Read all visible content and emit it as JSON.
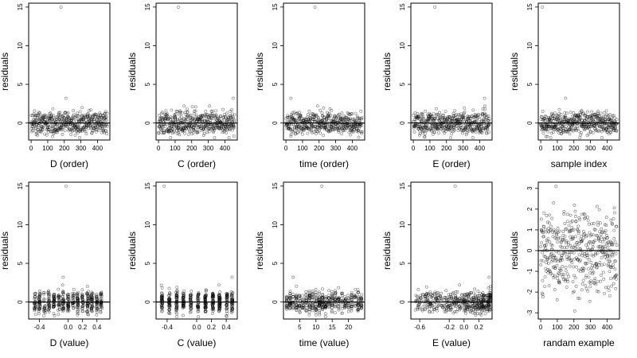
{
  "chart_data": [
    {
      "type": "scatter",
      "xlabel": "D (order)",
      "ylabel": "residuals",
      "xlim": [
        -15,
        475
      ],
      "ylim": [
        -2.2,
        15.5
      ],
      "xticks": [
        0,
        100,
        200,
        300,
        400
      ],
      "yticks": [
        0,
        5,
        10,
        15
      ],
      "hline": 0,
      "n": 460,
      "seed": 11,
      "noise": "bimodal",
      "spread": 1.0,
      "outlier": [
        180,
        15
      ],
      "extra": [
        [
          210,
          3.2
        ],
        [
          350,
          1.6
        ]
      ]
    },
    {
      "type": "scatter",
      "xlabel": "C (order)",
      "ylabel": "residuals",
      "xlim": [
        -15,
        475
      ],
      "ylim": [
        -2.2,
        15.5
      ],
      "xticks": [
        0,
        100,
        200,
        300,
        400
      ],
      "yticks": [
        0,
        5,
        10,
        15
      ],
      "hline": 0,
      "n": 460,
      "seed": 23,
      "noise": "bimodal",
      "spread": 1.0,
      "outlier": [
        120,
        15
      ],
      "extra": [
        [
          450,
          3.2
        ]
      ]
    },
    {
      "type": "scatter",
      "xlabel": "time (order)",
      "ylabel": "residuals",
      "xlim": [
        -15,
        475
      ],
      "ylim": [
        -2.2,
        15.5
      ],
      "xticks": [
        0,
        100,
        200,
        300,
        400
      ],
      "yticks": [
        0,
        5,
        10,
        15
      ],
      "hline": 0,
      "n": 460,
      "seed": 37,
      "noise": "bimodal",
      "spread": 1.0,
      "outlier": [
        175,
        15
      ],
      "extra": [
        [
          30,
          3.2
        ]
      ]
    },
    {
      "type": "scatter",
      "xlabel": "E (order)",
      "ylabel": "residuals",
      "xlim": [
        -15,
        475
      ],
      "ylim": [
        -2.2,
        15.5
      ],
      "xticks": [
        0,
        100,
        200,
        300,
        400
      ],
      "yticks": [
        0,
        5,
        10,
        15
      ],
      "hline": 0,
      "n": 460,
      "seed": 41,
      "noise": "bimodal",
      "spread": 1.0,
      "outlier": [
        130,
        15
      ],
      "extra": [
        [
          430,
          3.2
        ]
      ]
    },
    {
      "type": "scatter",
      "xlabel": "sample index",
      "ylabel": "residuals",
      "xlim": [
        -15,
        475
      ],
      "ylim": [
        -2.2,
        15.5
      ],
      "xticks": [
        0,
        100,
        200,
        300,
        400
      ],
      "yticks": [
        0,
        5,
        10,
        15
      ],
      "hline": 0,
      "n": 460,
      "seed": 53,
      "noise": "bimodal",
      "spread": 1.0,
      "outlier": [
        10,
        15
      ],
      "extra": [
        [
          150,
          3.2
        ]
      ]
    },
    {
      "type": "scatter",
      "xlabel": "D (value)",
      "ylabel": "residuals",
      "xlim": [
        -0.55,
        0.58
      ],
      "ylim": [
        -2.2,
        15.5
      ],
      "xticks": [
        -0.4,
        0.0,
        0.2,
        0.4
      ],
      "xtick_labels": [
        "-0.4",
        "0.0",
        "0.2",
        "0.4"
      ],
      "yticks": [
        0,
        5,
        10,
        15
      ],
      "hline": 0,
      "n": 460,
      "seed": 61,
      "noise": "bimodal",
      "spread": 1.0,
      "xlevels": [
        -0.46,
        -0.4,
        -0.33,
        -0.27,
        -0.2,
        -0.13,
        -0.07,
        0.0,
        0.07,
        0.13,
        0.2,
        0.27,
        0.33,
        0.4,
        0.46
      ],
      "xjitter": 0.012,
      "outlier": [
        -0.03,
        15
      ],
      "extra": [
        [
          -0.07,
          3.2
        ]
      ]
    },
    {
      "type": "scatter",
      "xlabel": "C (value)",
      "ylabel": "residuals",
      "xlim": [
        -0.55,
        0.55
      ],
      "ylim": [
        -2.2,
        15.5
      ],
      "xticks": [
        -0.4,
        0.0,
        0.2,
        0.4
      ],
      "xtick_labels": [
        "-0.4",
        "0.0",
        "0.2",
        "0.4"
      ],
      "yticks": [
        0,
        5,
        10,
        15
      ],
      "hline": 0,
      "n": 460,
      "seed": 71,
      "noise": "bimodal",
      "spread": 1.0,
      "xlevels": [
        -0.47,
        -0.37,
        -0.27,
        -0.18,
        -0.08,
        0.02,
        0.12,
        0.22,
        0.31,
        0.41,
        0.48
      ],
      "xjitter": 0.01,
      "outlier": [
        -0.44,
        15
      ],
      "extra": [
        [
          0.48,
          3.2
        ]
      ]
    },
    {
      "type": "scatter",
      "xlabel": "time (value)",
      "ylabel": "residuals",
      "xlim": [
        0,
        25
      ],
      "ylim": [
        -2.2,
        15.5
      ],
      "xticks": [
        5,
        10,
        15,
        20
      ],
      "yticks": [
        0,
        5,
        10,
        15
      ],
      "hline": 0,
      "n": 460,
      "seed": 83,
      "noise": "bimodal",
      "spread": 1.0,
      "xlevels": [
        1,
        2,
        3,
        4,
        5,
        6,
        7,
        8,
        9,
        10,
        11,
        12,
        13,
        14,
        15,
        16,
        17,
        18,
        19,
        20,
        21,
        22,
        23,
        24
      ],
      "xjitter": 0.12,
      "outlier": [
        11.8,
        15
      ],
      "extra": [
        [
          3,
          3.2
        ]
      ]
    },
    {
      "type": "scatter",
      "xlabel": "E (value)",
      "ylabel": "residuals",
      "xlim": [
        -0.72,
        0.38
      ],
      "ylim": [
        -2.2,
        15.5
      ],
      "xticks": [
        -0.6,
        -0.2,
        0.0,
        0.2
      ],
      "xtick_labels": [
        "-0.6",
        "-0.2",
        "0.0",
        "0.2"
      ],
      "yticks": [
        0,
        5,
        10,
        15
      ],
      "hline": 0,
      "n": 460,
      "seed": 97,
      "noise": "bimodal",
      "spread": 1.0,
      "xskew": true,
      "outlier": [
        -0.12,
        15
      ],
      "extra": [
        [
          0.34,
          3.2
        ]
      ]
    },
    {
      "type": "scatter",
      "xlabel": "randam example",
      "ylabel": "residuals",
      "xlim": [
        -15,
        475
      ],
      "ylim": [
        -3.3,
        3.3
      ],
      "xticks": [
        0,
        100,
        200,
        300,
        400
      ],
      "yticks": [
        -3,
        -2,
        -1,
        0,
        1,
        2,
        3
      ],
      "hline": 0,
      "n": 460,
      "seed": 101,
      "noise": "normal",
      "spread": 1.0
    }
  ]
}
